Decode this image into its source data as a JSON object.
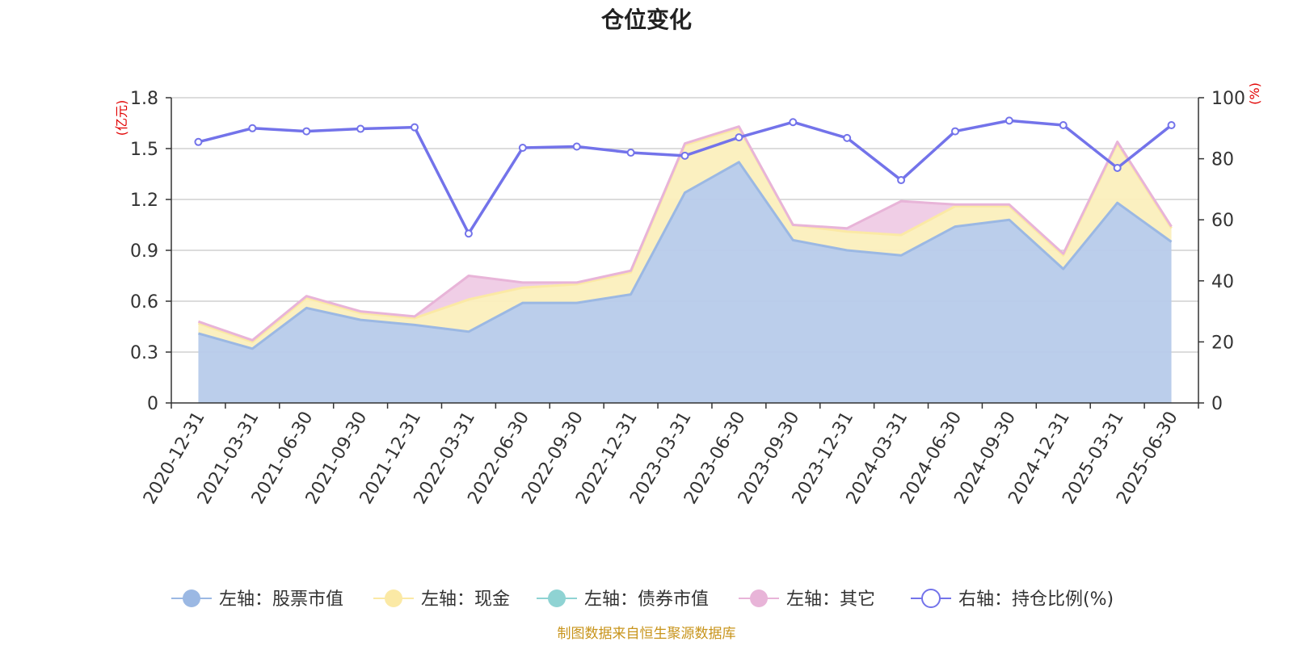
{
  "title": "仓位变化",
  "y_left_unit": "(亿元)",
  "y_right_unit": "(%)",
  "source": "制图数据来自恒生聚源数据库",
  "colors": {
    "stock": "#9bb8e3",
    "stock_fill": "#b7cbea",
    "cash": "#fbe9a5",
    "cash_fill": "#fbefbd",
    "bond": "#8fd3d3",
    "other": "#e8b4d8",
    "other_fill": "#efcbe5",
    "ratio": "#7373ea",
    "source": "#c8941b",
    "unit": "#e10000",
    "grid": "#c8c8c8"
  },
  "chart_data": {
    "type": "area",
    "title": "仓位变化",
    "categories": [
      "2020-12-31",
      "2021-03-31",
      "2021-06-30",
      "2021-09-30",
      "2021-12-31",
      "2022-03-31",
      "2022-06-30",
      "2022-09-30",
      "2022-12-31",
      "2023-03-31",
      "2023-06-30",
      "2023-09-30",
      "2023-12-31",
      "2024-03-31",
      "2024-06-30",
      "2024-09-30",
      "2024-12-31",
      "2025-03-31",
      "2025-06-30"
    ],
    "y_left": {
      "label": "(亿元)",
      "ylim": [
        0,
        1.8
      ],
      "ticks": [
        "0",
        "0.3",
        "0.6",
        "0.9",
        "1.2",
        "1.5",
        "1.8"
      ]
    },
    "y_right": {
      "label": "(%)",
      "ylim": [
        0,
        100
      ],
      "ticks": [
        "0",
        "20",
        "40",
        "60",
        "80",
        "100"
      ]
    },
    "grid": true,
    "legend_position": "bottom",
    "series": [
      {
        "name": "左轴：股票市值",
        "axis": "left",
        "stack": true,
        "values": [
          0.41,
          0.32,
          0.56,
          0.49,
          0.46,
          0.42,
          0.59,
          0.59,
          0.64,
          1.24,
          1.42,
          0.96,
          0.9,
          0.87,
          1.04,
          1.08,
          0.79,
          1.18,
          0.95
        ]
      },
      {
        "name": "左轴：现金",
        "axis": "left",
        "stack": true,
        "values": [
          0.06,
          0.04,
          0.06,
          0.04,
          0.04,
          0.19,
          0.09,
          0.11,
          0.13,
          0.28,
          0.2,
          0.09,
          0.11,
          0.12,
          0.12,
          0.08,
          0.08,
          0.35,
          0.08
        ]
      },
      {
        "name": "左轴：债券市值",
        "axis": "left",
        "stack": true,
        "values": [
          0,
          0,
          0,
          0,
          0,
          0,
          0,
          0,
          0,
          0,
          0,
          0,
          0,
          0,
          0,
          0,
          0,
          0,
          0
        ]
      },
      {
        "name": "左轴：其它",
        "axis": "left",
        "stack": true,
        "values": [
          0.01,
          0.01,
          0.01,
          0.01,
          0.01,
          0.14,
          0.03,
          0.01,
          0.01,
          0.01,
          0.01,
          0.0,
          0.02,
          0.2,
          0.01,
          0.01,
          0.01,
          0.01,
          0.01
        ]
      },
      {
        "name": "右轴：持仓比例(%)",
        "axis": "right",
        "type": "line",
        "values": [
          85.5,
          90.0,
          89.0,
          89.8,
          90.3,
          55.5,
          83.6,
          84.0,
          82.0,
          81.0,
          87.0,
          92.0,
          86.8,
          73.0,
          89.0,
          92.5,
          91.0,
          77.0,
          91.0
        ]
      }
    ]
  }
}
